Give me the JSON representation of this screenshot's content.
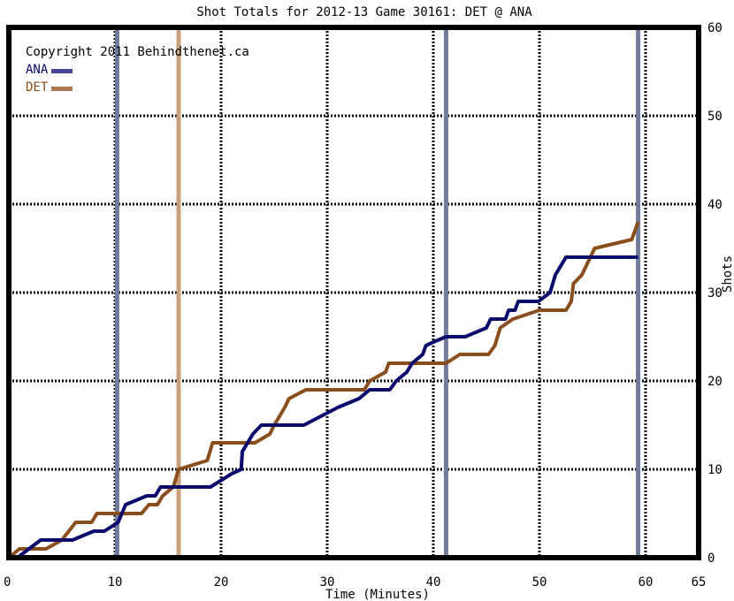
{
  "chart_data": {
    "type": "line",
    "title": "Shot Totals for 2012-13 Game 30161: DET @ ANA",
    "xlabel": "Time (Minutes)",
    "ylabel": "Shots",
    "xlim": [
      0,
      65
    ],
    "ylim": [
      0,
      60
    ],
    "x_ticks": [
      0,
      10,
      20,
      30,
      40,
      50,
      60,
      65
    ],
    "y_ticks": [
      0,
      10,
      20,
      30,
      40,
      50,
      60
    ],
    "grid": true,
    "legend_position": "top-left",
    "copyright": "Copyright 2011 Behindthenet.ca",
    "series": [
      {
        "name": "ANA",
        "color": "#0b0b6e",
        "points": [
          [
            0,
            0
          ],
          [
            0.8,
            0
          ],
          [
            3,
            2
          ],
          [
            6,
            2
          ],
          [
            8,
            3
          ],
          [
            9,
            3
          ],
          [
            10.3,
            4
          ],
          [
            11,
            6
          ],
          [
            12,
            6.5
          ],
          [
            13,
            7
          ],
          [
            13.8,
            7
          ],
          [
            14.3,
            8
          ],
          [
            19,
            8
          ],
          [
            21,
            9.5
          ],
          [
            21.9,
            10
          ],
          [
            22,
            12
          ],
          [
            23,
            14
          ],
          [
            23.8,
            15
          ],
          [
            27.8,
            15
          ],
          [
            31,
            17
          ],
          [
            33,
            18
          ],
          [
            34,
            19
          ],
          [
            35.9,
            19
          ],
          [
            36.5,
            20
          ],
          [
            37.5,
            21
          ],
          [
            38,
            22
          ],
          [
            39,
            23
          ],
          [
            39.3,
            24
          ],
          [
            40.2,
            24.5
          ],
          [
            41.2,
            25
          ],
          [
            43,
            25
          ],
          [
            45,
            26
          ],
          [
            45.4,
            27
          ],
          [
            46.8,
            27
          ],
          [
            47.1,
            28
          ],
          [
            47.7,
            28
          ],
          [
            48,
            29
          ],
          [
            49.9,
            29
          ],
          [
            51,
            30
          ],
          [
            51.5,
            32
          ],
          [
            52.5,
            34
          ],
          [
            59.3,
            34
          ]
        ],
        "vertical_marks": [
          10.2,
          41.2,
          59.3
        ]
      },
      {
        "name": "DET",
        "color": "#8a4e1c",
        "points": [
          [
            0,
            0
          ],
          [
            1,
            1
          ],
          [
            3.5,
            1
          ],
          [
            5,
            2
          ],
          [
            6.3,
            4
          ],
          [
            7.8,
            4
          ],
          [
            8.3,
            5
          ],
          [
            12.5,
            5
          ],
          [
            13.2,
            6
          ],
          [
            14,
            6
          ],
          [
            14.5,
            7
          ],
          [
            15.5,
            8
          ],
          [
            16,
            10
          ],
          [
            18.7,
            11
          ],
          [
            19.2,
            13
          ],
          [
            23.2,
            13
          ],
          [
            24.6,
            14
          ],
          [
            25,
            15
          ],
          [
            26,
            17
          ],
          [
            26.4,
            18
          ],
          [
            28,
            19
          ],
          [
            33.5,
            19
          ],
          [
            34,
            20
          ],
          [
            35.5,
            21
          ],
          [
            35.8,
            22
          ],
          [
            41.2,
            22
          ],
          [
            42.5,
            23
          ],
          [
            45.2,
            23
          ],
          [
            45.8,
            24
          ],
          [
            46.3,
            26
          ],
          [
            47.5,
            27
          ],
          [
            50,
            28
          ],
          [
            52.5,
            28
          ],
          [
            53,
            29
          ],
          [
            53.2,
            31
          ],
          [
            54,
            32
          ],
          [
            55.2,
            35
          ],
          [
            58.7,
            36
          ],
          [
            59,
            37
          ],
          [
            59.3,
            38
          ]
        ],
        "vertical_marks": [
          16
        ]
      }
    ]
  }
}
